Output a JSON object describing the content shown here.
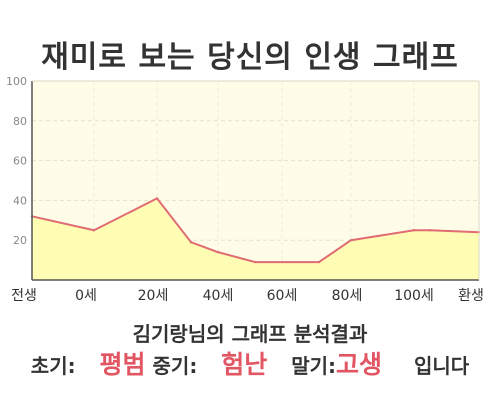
{
  "header": {
    "title": "재미로 보는 당신의 인생 그래프"
  },
  "chart_data": {
    "type": "area",
    "x_labels": [
      "전생",
      "0세",
      "20세",
      "40세",
      "60세",
      "80세",
      "100세",
      "환생"
    ],
    "points": [
      {
        "x": "전생",
        "y": 32
      },
      {
        "x": "0세",
        "y": 25
      },
      {
        "x": "20세",
        "y": 41
      },
      {
        "x": "30세",
        "y": 19
      },
      {
        "x": "40세",
        "y": 14
      },
      {
        "x": "50세",
        "y": 9
      },
      {
        "x": "70세",
        "y": 9
      },
      {
        "x": "80세",
        "y": 20
      },
      {
        "x": "100세",
        "y": 25
      },
      {
        "x": "110세",
        "y": 25
      },
      {
        "x": "환생",
        "y": 24
      }
    ],
    "ylim": [
      0,
      100
    ],
    "yticks": [
      20,
      40,
      60,
      80,
      100
    ],
    "grid": true,
    "colors": {
      "line": "#e06b73",
      "fill": "#fefdb3",
      "plot_bg": "#fffde8"
    }
  },
  "result": {
    "subtitle": "김기랑님의 그래프 분석결과",
    "early_label": "초기:",
    "early_value": "평범",
    "mid_label": "중기:",
    "mid_value": "험난",
    "late_label": "말기:",
    "late_value": "고생",
    "suffix": "입니다",
    "highlight_color": "#e25563"
  }
}
